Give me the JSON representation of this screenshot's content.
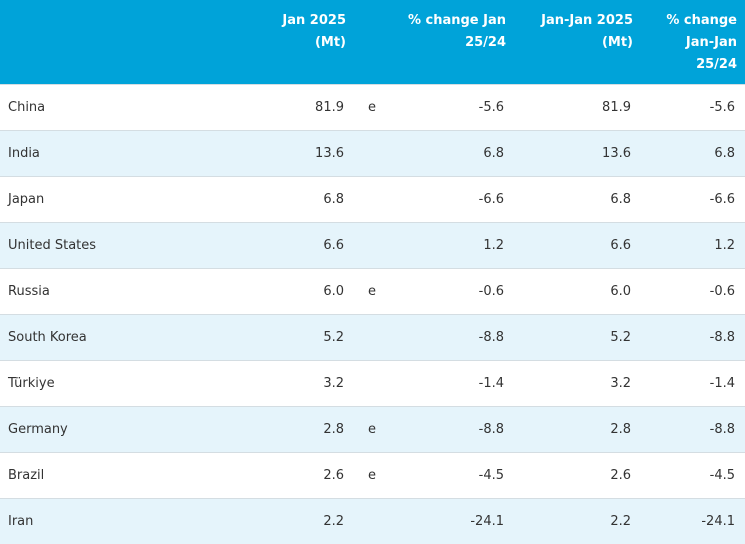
{
  "table": {
    "columns": [
      [],
      [
        "Jan 2025",
        "(Mt)"
      ],
      [],
      [
        "% change Jan",
        "25/24"
      ],
      [
        "Jan-Jan 2025",
        "(Mt)"
      ],
      [
        "% change",
        "Jan-Jan",
        "25/24"
      ]
    ],
    "rows": [
      [
        "China",
        "81.9",
        "e",
        "-5.6",
        "81.9",
        "-5.6"
      ],
      [
        "India",
        "13.6",
        null,
        "6.8",
        "13.6",
        "6.8"
      ],
      [
        "Japan",
        "6.8",
        null,
        "-6.6",
        "6.8",
        "-6.6"
      ],
      [
        "United States",
        "6.6",
        null,
        "1.2",
        "6.6",
        "1.2"
      ],
      [
        "Russia",
        "6.0",
        "e",
        "-0.6",
        "6.0",
        "-0.6"
      ],
      [
        "South Korea",
        "5.2",
        null,
        "-8.8",
        "5.2",
        "-8.8"
      ],
      [
        "Türkiye",
        "3.2",
        null,
        "-1.4",
        "3.2",
        "-1.4"
      ],
      [
        "Germany",
        "2.8",
        "e",
        "-8.8",
        "2.8",
        "-8.8"
      ],
      [
        "Brazil",
        "2.6",
        "e",
        "-4.5",
        "2.6",
        "-4.5"
      ],
      [
        "Iran",
        "2.2",
        null,
        "-24.1",
        "2.2",
        "-24.1"
      ]
    ]
  }
}
